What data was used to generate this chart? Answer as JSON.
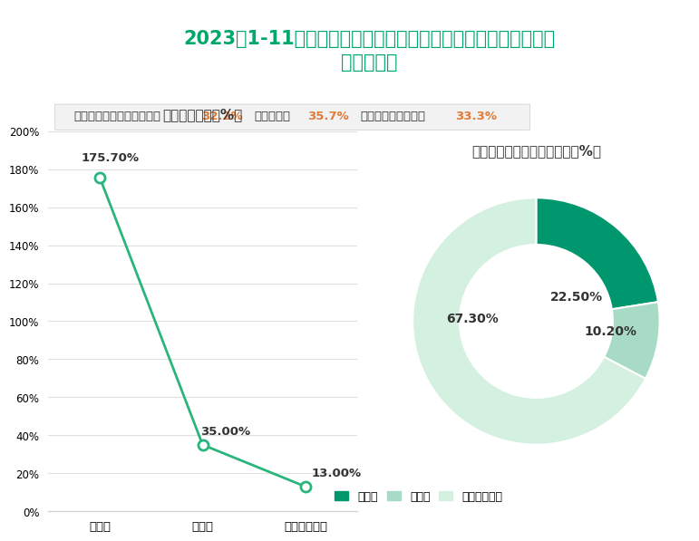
{
  "title": "2023年1-11月阿勒泰地区工业三大门类同比增长及占第二产业投\n资总额情况",
  "subtitle_normal": "第二产业完成投资同比增长",
  "subtitle_val1": "32.2%",
  "subtitle_mid1": "，环比下降",
  "subtitle_val2": "35.7%",
  "subtitle_mid2": "，占全部投资总额的",
  "subtitle_val3": "33.3%",
  "title_color": "#00a86b",
  "highlight_color": "#e07b39",
  "subtitle_bg": "#f0f0f0",
  "line_categories": [
    "采矿业",
    "制造业",
    "电力热力燃力"
  ],
  "line_values": [
    175.7,
    35.0,
    13.0
  ],
  "line_color": "#2ab57d",
  "marker_color": "#2ab57d",
  "line_label_color": "#333333",
  "left_title": "投资同比增长（%）",
  "right_title": "占第二产业投资总额百分比（%）",
  "left_title_color": "#333333",
  "right_title_color": "#333333",
  "ylim": [
    0,
    200
  ],
  "yticks": [
    0,
    20,
    40,
    60,
    80,
    100,
    120,
    140,
    160,
    180,
    200
  ],
  "pie_values": [
    22.5,
    10.2,
    67.3
  ],
  "pie_labels": [
    "22.50%",
    "10.20%",
    "67.30%"
  ],
  "pie_colors": [
    "#00966e",
    "#a8dbc5",
    "#d4f0e0"
  ],
  "pie_legend_labels": [
    "采矿业",
    "制造业",
    "电力热力燃力"
  ],
  "donut_width": 0.38,
  "background_color": "#ffffff",
  "grid_color": "#e0e0e0"
}
